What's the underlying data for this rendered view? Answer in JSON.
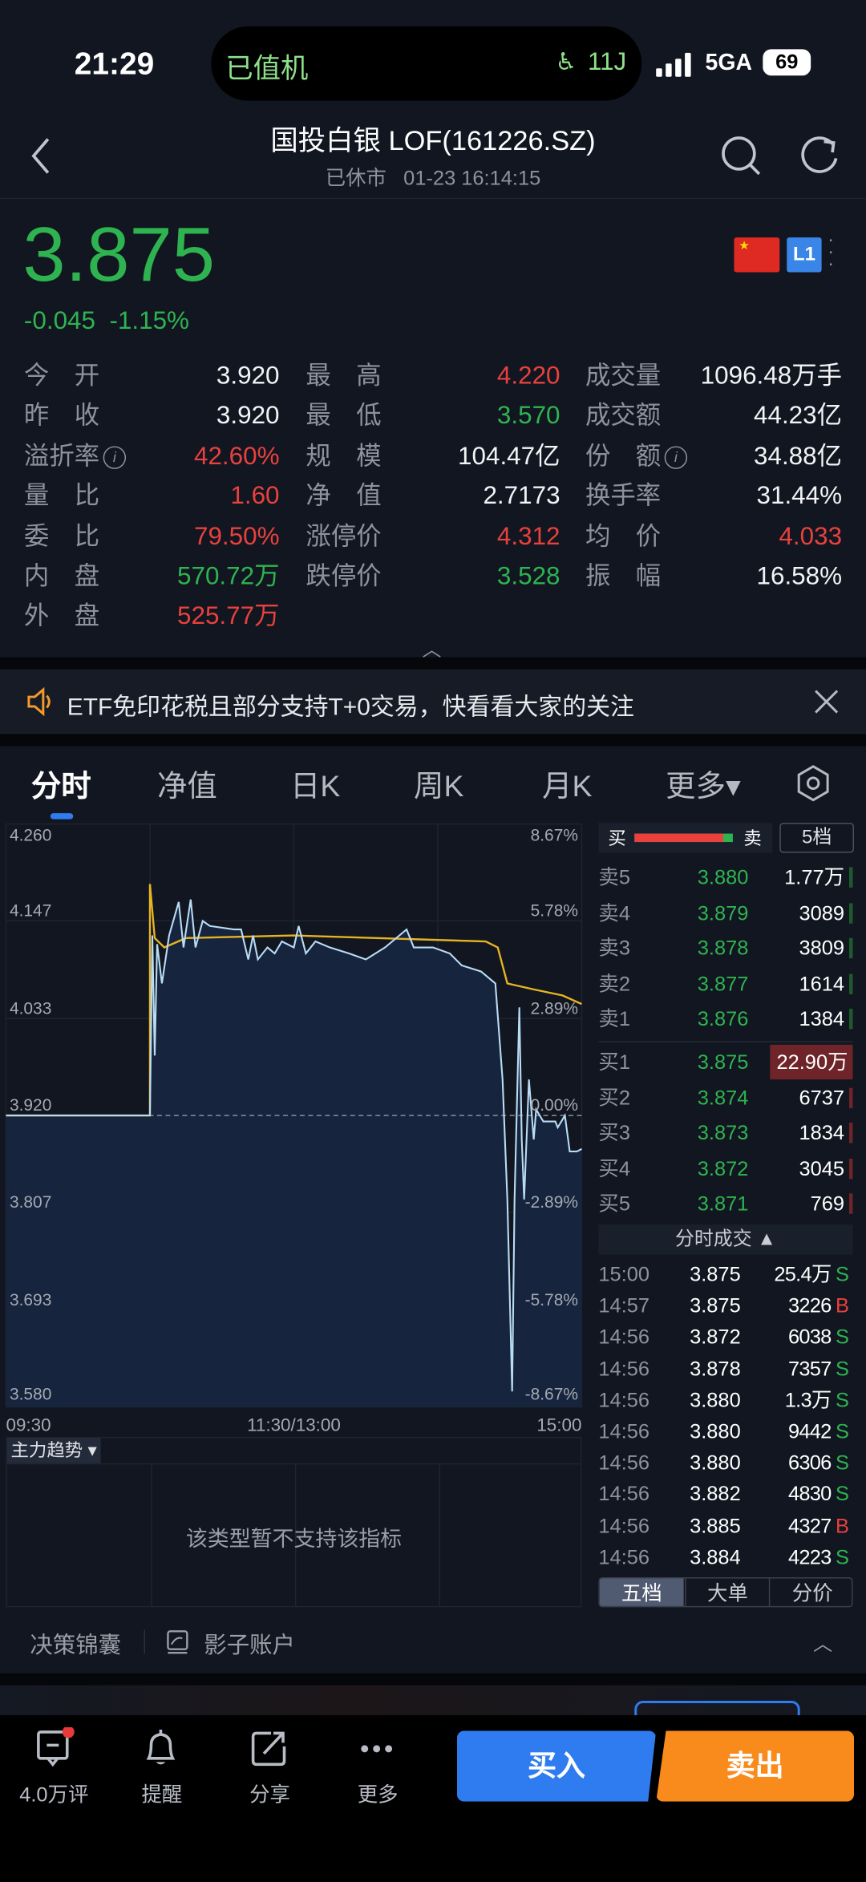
{
  "status_bar": {
    "time": "21:29",
    "island_text": "已值机",
    "island_seat": "11J",
    "network": "5GA",
    "battery": "69"
  },
  "header": {
    "title": "国投白银 LOF(161226.SZ)",
    "subtitle_status": "已休市",
    "subtitle_time": "01-23 16:14:15"
  },
  "quote": {
    "price": "3.875",
    "change": "-0.045",
    "change_pct": "-1.15%",
    "level_badge": "L1"
  },
  "stats": [
    [
      {
        "label": "今　开",
        "value": "3.920",
        "color": "w"
      },
      {
        "label": "最　高",
        "value": "4.220",
        "color": "r"
      },
      {
        "label": "成交量",
        "value": "1096.48万手",
        "color": "w"
      }
    ],
    [
      {
        "label": "昨　收",
        "value": "3.920",
        "color": "w"
      },
      {
        "label": "最　低",
        "value": "3.570",
        "color": "g"
      },
      {
        "label": "成交额",
        "value": "44.23亿",
        "color": "w"
      }
    ],
    [
      {
        "label": "溢折率",
        "value": "42.60%",
        "color": "r",
        "info": true
      },
      {
        "label": "规　模",
        "value": "104.47亿",
        "color": "w"
      },
      {
        "label": "份　额",
        "value": "34.88亿",
        "color": "w",
        "info": true
      }
    ],
    [
      {
        "label": "量　比",
        "value": "1.60",
        "color": "r"
      },
      {
        "label": "净　值",
        "value": "2.7173",
        "color": "w"
      },
      {
        "label": "换手率",
        "value": "31.44%",
        "color": "w"
      }
    ],
    [
      {
        "label": "委　比",
        "value": "79.50%",
        "color": "r"
      },
      {
        "label": "涨停价",
        "value": "4.312",
        "color": "r"
      },
      {
        "label": "均　价",
        "value": "4.033",
        "color": "r"
      }
    ],
    [
      {
        "label": "内　盘",
        "value": "570.72万",
        "color": "g"
      },
      {
        "label": "跌停价",
        "value": "3.528",
        "color": "g"
      },
      {
        "label": "振　幅",
        "value": "16.58%",
        "color": "w"
      }
    ],
    [
      {
        "label": "外　盘",
        "value": "525.77万",
        "color": "r"
      }
    ]
  ],
  "banner": {
    "text": "ETF免印花税且部分支持T+0交易，快看看大家的关注"
  },
  "tabs": [
    {
      "label": "分时",
      "active": true
    },
    {
      "label": "净值"
    },
    {
      "label": "日K"
    },
    {
      "label": "周K"
    },
    {
      "label": "月K"
    },
    {
      "label": "更多▾"
    }
  ],
  "chart_data": {
    "type": "line",
    "y_ticks_left": [
      "4.260",
      "4.147",
      "4.033",
      "3.920",
      "3.807",
      "3.693",
      "3.580"
    ],
    "y_ticks_right": [
      "8.67%",
      "5.78%",
      "2.89%",
      "0.00%",
      "-2.89%",
      "-5.78%",
      "-8.67%"
    ],
    "x_ticks": [
      "09:30",
      "11:30/13:00",
      "15:00"
    ],
    "ylim": [
      3.58,
      4.26
    ],
    "prev_close": 3.92,
    "colors": {
      "price": "#b9dcf5",
      "avg": "#e6b422",
      "fill": "#172640"
    },
    "price_series": [
      [
        "09:30",
        3.92
      ],
      [
        "10:30",
        3.92
      ],
      [
        "10:31",
        4.13
      ],
      [
        "10:32",
        3.99
      ],
      [
        "10:33",
        4.12
      ],
      [
        "10:35",
        4.074
      ],
      [
        "10:38",
        4.13
      ],
      [
        "10:42",
        4.169
      ],
      [
        "10:44",
        4.116
      ],
      [
        "10:47",
        4.172
      ],
      [
        "10:49",
        4.116
      ],
      [
        "10:52",
        4.147
      ],
      [
        "10:55",
        4.141
      ],
      [
        "11:05",
        4.137
      ],
      [
        "11:08",
        4.137
      ],
      [
        "11:11",
        4.102
      ],
      [
        "11:13",
        4.13
      ],
      [
        "11:15",
        4.102
      ],
      [
        "11:19",
        4.116
      ],
      [
        "11:22",
        4.109
      ],
      [
        "11:25",
        4.123
      ],
      [
        "11:30",
        4.116
      ],
      [
        "13:02",
        4.141
      ],
      [
        "13:05",
        4.109
      ],
      [
        "13:09",
        4.123
      ],
      [
        "13:15",
        4.116
      ],
      [
        "13:23",
        4.109
      ],
      [
        "13:30",
        4.102
      ],
      [
        "13:38",
        4.116
      ],
      [
        "13:47",
        4.137
      ],
      [
        "13:50",
        4.116
      ],
      [
        "13:58",
        4.116
      ],
      [
        "14:05",
        4.109
      ],
      [
        "14:10",
        4.095
      ],
      [
        "14:18",
        4.088
      ],
      [
        "14:24",
        4.074
      ],
      [
        "14:27",
        3.962
      ],
      [
        "14:29",
        3.822
      ],
      [
        "14:31",
        3.598
      ],
      [
        "14:32",
        3.822
      ],
      [
        "14:34",
        4.046
      ],
      [
        "14:35",
        3.892
      ],
      [
        "14:36",
        3.822
      ],
      [
        "14:38",
        3.962
      ],
      [
        "14:40",
        3.892
      ],
      [
        "14:41",
        3.927
      ],
      [
        "14:44",
        3.913
      ],
      [
        "14:49",
        3.913
      ],
      [
        "14:50",
        3.906
      ],
      [
        "14:53",
        3.92
      ],
      [
        "14:55",
        3.878
      ],
      [
        "14:58",
        3.878
      ],
      [
        "15:00",
        3.881
      ]
    ],
    "avg_series": [
      [
        "09:30",
        3.92
      ],
      [
        "10:30",
        3.92
      ],
      [
        "10:30",
        4.19
      ],
      [
        "10:32",
        4.127
      ],
      [
        "10:36",
        4.116
      ],
      [
        "10:45",
        4.127
      ],
      [
        "11:30",
        4.13
      ],
      [
        "13:00",
        4.13
      ],
      [
        "14:20",
        4.123
      ],
      [
        "14:25",
        4.116
      ],
      [
        "14:29",
        4.074
      ],
      [
        "14:40",
        4.067
      ],
      [
        "14:52",
        4.06
      ],
      [
        "15:00",
        4.05
      ]
    ]
  },
  "indicator": {
    "selector": "主力趋势 ▾",
    "message": "该类型暂不支持该指标"
  },
  "order_book": {
    "header_buy": "买",
    "header_sell": "卖",
    "depth_button": "5档",
    "buy_ratio": 0.9,
    "asks": [
      {
        "label": "卖5",
        "price": "3.880",
        "vol": "1.77万"
      },
      {
        "label": "卖4",
        "price": "3.879",
        "vol": "3089"
      },
      {
        "label": "卖3",
        "price": "3.878",
        "vol": "3809"
      },
      {
        "label": "卖2",
        "price": "3.877",
        "vol": "1614"
      },
      {
        "label": "卖1",
        "price": "3.876",
        "vol": "1384"
      }
    ],
    "bids": [
      {
        "label": "买1",
        "price": "3.875",
        "vol": "22.90万"
      },
      {
        "label": "买2",
        "price": "3.874",
        "vol": "6737"
      },
      {
        "label": "买3",
        "price": "3.873",
        "vol": "1834"
      },
      {
        "label": "买4",
        "price": "3.872",
        "vol": "3045"
      },
      {
        "label": "买5",
        "price": "3.871",
        "vol": "769"
      }
    ]
  },
  "trades": {
    "title": "分时成交 ▲",
    "rows": [
      [
        "15:00",
        "3.875",
        "25.4万",
        "S"
      ],
      [
        "14:57",
        "3.875",
        "3226",
        "B"
      ],
      [
        "14:56",
        "3.872",
        "6038",
        "S"
      ],
      [
        "14:56",
        "3.878",
        "7357",
        "S"
      ],
      [
        "14:56",
        "3.880",
        "1.3万",
        "S"
      ],
      [
        "14:56",
        "3.880",
        "9442",
        "S"
      ],
      [
        "14:56",
        "3.880",
        "6306",
        "S"
      ],
      [
        "14:56",
        "3.882",
        "4830",
        "S"
      ],
      [
        "14:56",
        "3.885",
        "4327",
        "B"
      ],
      [
        "14:56",
        "3.884",
        "4223",
        "S"
      ]
    ]
  },
  "panel_tabs": [
    "五档",
    "大单",
    "分价"
  ],
  "tools": {
    "decision": "决策锦囊",
    "shadow": "影子账户"
  },
  "bottom_nav": [
    {
      "label": "4.0万评",
      "icon": "comment-icon"
    },
    {
      "label": "提醒",
      "icon": "bell-icon"
    },
    {
      "label": "分享",
      "icon": "share-icon"
    },
    {
      "label": "更多",
      "icon": "more-icon"
    }
  ],
  "actions": {
    "buy": "买入",
    "sell": "卖出"
  }
}
